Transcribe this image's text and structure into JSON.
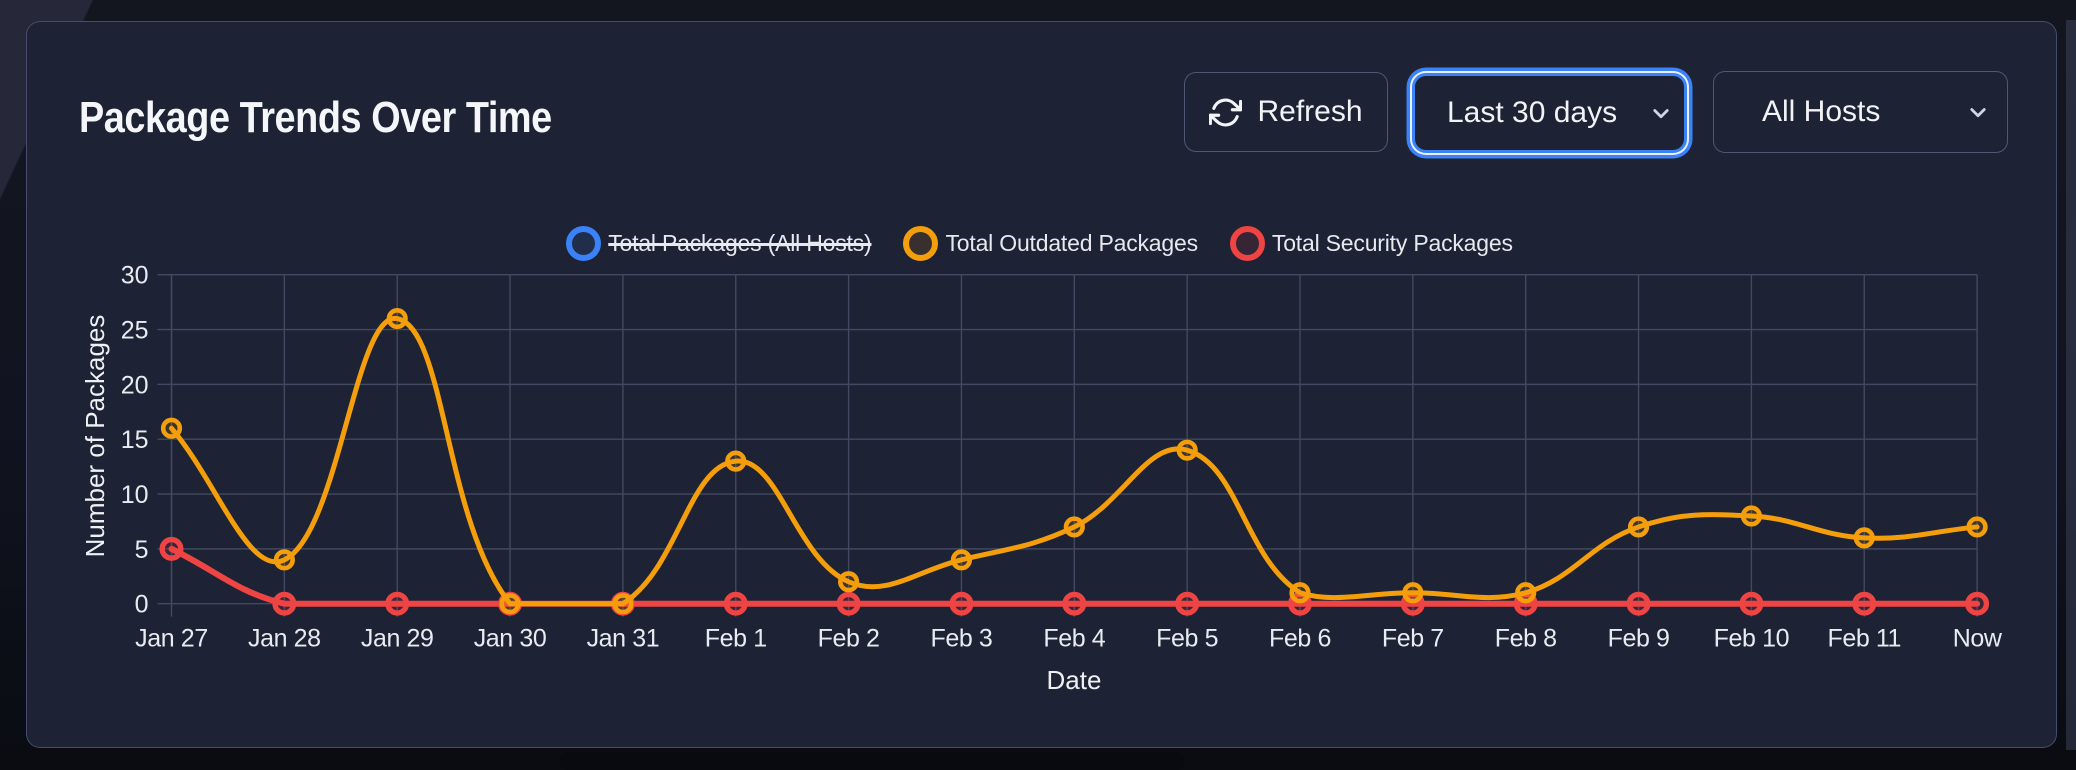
{
  "header": {
    "title": "Package Trends Over Time",
    "refresh_label": "Refresh",
    "time_range_value": "Last 30 days",
    "host_filter_value": "All Hosts"
  },
  "icons": {
    "refresh": "refresh-icon",
    "time_range_chevron": "chevron-down-icon",
    "host_chevron": "chevron-down-icon"
  },
  "colors": {
    "focus_ring": "#3b82f6",
    "card_background": "#1d2234",
    "grid": "#424960",
    "tick_text": "#e9ebf1"
  },
  "chart_data": {
    "type": "line",
    "title": "",
    "xlabel": "Date",
    "ylabel": "Number of Packages",
    "categories": [
      "Jan 27",
      "Jan 28",
      "Jan 29",
      "Jan 30",
      "Jan 31",
      "Feb 1",
      "Feb 2",
      "Feb 3",
      "Feb 4",
      "Feb 5",
      "Feb 6",
      "Feb 7",
      "Feb 8",
      "Feb 9",
      "Feb 10",
      "Feb 11",
      "Now"
    ],
    "series": [
      {
        "name": "Total Packages (All Hosts)",
        "color": "#3b82f6",
        "hidden": true,
        "values": []
      },
      {
        "name": "Total Outdated Packages",
        "color": "#f59e0b",
        "hidden": false,
        "values": [
          16,
          4,
          26,
          0,
          0,
          13,
          2,
          4,
          7,
          14,
          1,
          1,
          1,
          7,
          8,
          6,
          7
        ]
      },
      {
        "name": "Total Security Packages",
        "color": "#ef4444",
        "hidden": false,
        "values": [
          5,
          0,
          0,
          0,
          0,
          0,
          0,
          0,
          0,
          0,
          0,
          0,
          0,
          0,
          0,
          0,
          0
        ]
      }
    ],
    "ylim": [
      0,
      30
    ],
    "yticks": [
      0,
      5,
      10,
      15,
      20,
      25,
      30
    ],
    "grid": true,
    "legend_position": "top",
    "line_tension": 0.4
  }
}
